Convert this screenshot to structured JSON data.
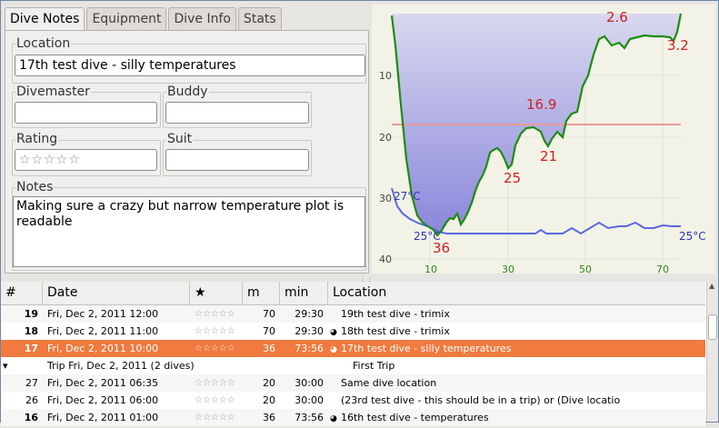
{
  "tabs": [
    "Dive Notes",
    "Equipment",
    "Dive Info",
    "Stats"
  ],
  "notes": {
    "location_label": "Location",
    "location_value": "17th test dive - silly temperatures",
    "divemaster_label": "Divemaster",
    "divemaster_value": "",
    "buddy_label": "Buddy",
    "buddy_value": "",
    "rating_label": "Rating",
    "rating_value": "☆☆☆☆☆",
    "suit_label": "Suit",
    "suit_value": "",
    "notes_label": "Notes",
    "notes_value": "Making sure a crazy but narrow temperature plot is readable"
  },
  "profile": {
    "depth_ticks": [
      "10",
      "20",
      "30",
      "40"
    ],
    "time_ticks": [
      "10",
      "30",
      "50",
      "70"
    ],
    "annotations": {
      "max_depth": "36",
      "d25a": "25",
      "d169": "16.9",
      "d21": "21",
      "d26": "2.6",
      "d32": "3.2"
    },
    "temps": {
      "t_start": "27°C",
      "t_low": "25°C",
      "t_end": "25°C"
    },
    "colors": {
      "depth_line": "#1e8c14",
      "area_top": "#d8d8ee",
      "area_bottom": "#8a86dc",
      "temp_line": "#5a68e0",
      "ceiling_line": "#e89a98",
      "depth_label": "#cc2222",
      "temp_label": "#2a36b8"
    }
  },
  "table": {
    "columns": [
      "#",
      "Date",
      "★",
      "m",
      "min",
      "Location"
    ],
    "rows": [
      {
        "n": "19",
        "date": "Fri, Dec 2, 2011 12:00",
        "stars": "☆☆☆☆☆",
        "m": "70",
        "min": "29:30",
        "loc": "19th test dive - trimix",
        "icon": false,
        "bold": true
      },
      {
        "n": "18",
        "date": "Fri, Dec 2, 2011 11:00",
        "stars": "☆☆☆☆☆",
        "m": "70",
        "min": "29:30",
        "loc": "18th test dive - trimix",
        "icon": true,
        "bold": true
      },
      {
        "n": "17",
        "date": "Fri, Dec 2, 2011 10:00",
        "stars": "☆☆☆☆☆",
        "m": "36",
        "min": "73:56",
        "loc": "17th test dive - silly temperatures",
        "icon": true,
        "bold": true,
        "selected": true
      },
      {
        "n": "",
        "date": "Trip Fri, Dec 2, 2011 (2 dives)",
        "stars": "",
        "m": "",
        "min": "",
        "loc": "First Trip",
        "icon": false,
        "trip": true
      },
      {
        "n": "27",
        "date": "Fri, Dec 2, 2011 06:35",
        "stars": "☆☆☆☆☆",
        "m": "20",
        "min": "30:00",
        "loc": "Same dive location",
        "icon": false
      },
      {
        "n": "26",
        "date": "Fri, Dec 2, 2011 06:00",
        "stars": "☆☆☆☆☆",
        "m": "20",
        "min": "30:00",
        "loc": "(23rd test dive - this should be in a trip) or (Dive locatio",
        "icon": false
      },
      {
        "n": "16",
        "date": "Fri, Dec 2, 2011 01:00",
        "stars": "☆☆☆☆☆",
        "m": "36",
        "min": "73:56",
        "loc": "16th test dive - temperatures",
        "icon": true,
        "bold": true
      }
    ]
  }
}
